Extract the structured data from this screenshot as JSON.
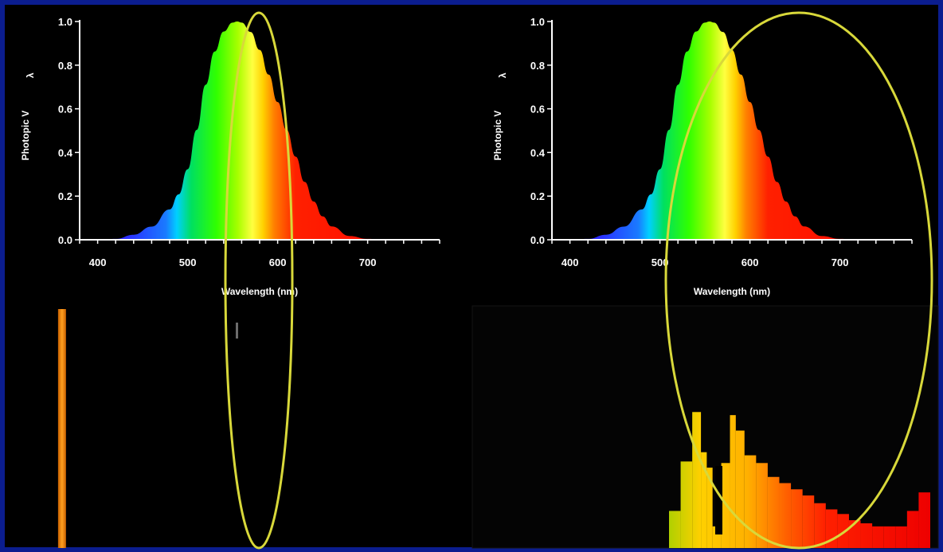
{
  "chart_data": [
    {
      "type": "area",
      "title": "",
      "xlabel": "Wavelength (nm)",
      "ylabel": "Photopic V",
      "ylabel_subscript": "λ",
      "xlim": [
        380,
        780
      ],
      "ylim": [
        0,
        1.0
      ],
      "xticks": [
        400,
        500,
        600,
        700
      ],
      "yticks": [
        "0.0",
        "0.2",
        "0.4",
        "0.6",
        "0.8",
        "1.0"
      ],
      "x": [
        380,
        400,
        420,
        440,
        460,
        480,
        490,
        500,
        510,
        520,
        530,
        540,
        550,
        555,
        560,
        570,
        580,
        590,
        600,
        610,
        620,
        630,
        640,
        650,
        660,
        680,
        700,
        720,
        740,
        760,
        780
      ],
      "values": [
        0.0,
        0.0004,
        0.004,
        0.023,
        0.06,
        0.139,
        0.208,
        0.323,
        0.503,
        0.71,
        0.862,
        0.954,
        0.995,
        1.0,
        0.995,
        0.952,
        0.87,
        0.757,
        0.631,
        0.503,
        0.381,
        0.265,
        0.175,
        0.107,
        0.061,
        0.017,
        0.004,
        0.001,
        0.0,
        0.0,
        0.0
      ],
      "grid": false,
      "fill": "visible-spectrum gradient"
    },
    {
      "type": "area",
      "title": "",
      "xlabel": "Wavelength (nm)",
      "ylabel": "Photopic V",
      "ylabel_subscript": "λ",
      "xlim": [
        380,
        780
      ],
      "ylim": [
        0,
        1.0
      ],
      "xticks": [
        400,
        500,
        600,
        700
      ],
      "yticks": [
        "0.0",
        "0.2",
        "0.4",
        "0.6",
        "0.8",
        "1.0"
      ],
      "x": [
        380,
        400,
        420,
        440,
        460,
        480,
        490,
        500,
        510,
        520,
        530,
        540,
        550,
        555,
        560,
        570,
        580,
        590,
        600,
        610,
        620,
        630,
        640,
        650,
        660,
        680,
        700,
        720,
        740,
        760,
        780
      ],
      "values": [
        0.0,
        0.0004,
        0.004,
        0.023,
        0.06,
        0.139,
        0.208,
        0.323,
        0.503,
        0.71,
        0.862,
        0.954,
        0.995,
        1.0,
        0.995,
        0.952,
        0.87,
        0.757,
        0.631,
        0.503,
        0.381,
        0.265,
        0.175,
        0.107,
        0.061,
        0.017,
        0.004,
        0.001,
        0.0,
        0.0,
        0.0
      ],
      "grid": false,
      "fill": "visible-spectrum gradient"
    },
    {
      "type": "bar",
      "title": "",
      "description_of_source": "single narrow emission line",
      "x": [
        589
      ],
      "values": [
        1.0
      ],
      "ylim": [
        0,
        1.0
      ],
      "color": "#ff8a00"
    },
    {
      "type": "bar",
      "title": "",
      "description_of_source": "broad stepped emission spectrum",
      "x": [
        555,
        565,
        575,
        580,
        585,
        590,
        600,
        605,
        610,
        620,
        630,
        640,
        650,
        660,
        670,
        680,
        690,
        700,
        710,
        720,
        730,
        740,
        750,
        760,
        770
      ],
      "values": [
        0.24,
        0.56,
        0.88,
        0.62,
        0.52,
        0.14,
        0.55,
        0.86,
        0.76,
        0.6,
        0.55,
        0.46,
        0.42,
        0.38,
        0.34,
        0.29,
        0.25,
        0.22,
        0.18,
        0.16,
        0.14,
        0.14,
        0.14,
        0.24,
        0.36
      ],
      "ylim": [
        0,
        1.0
      ]
    }
  ],
  "highlights": [
    {
      "name": "left-ellipse",
      "color": "#d8d83a"
    },
    {
      "name": "right-ellipse",
      "color": "#d8d83a"
    }
  ],
  "colors": {
    "frame": "#0b1d8f",
    "background": "#000000",
    "axis": "#ffffff"
  }
}
